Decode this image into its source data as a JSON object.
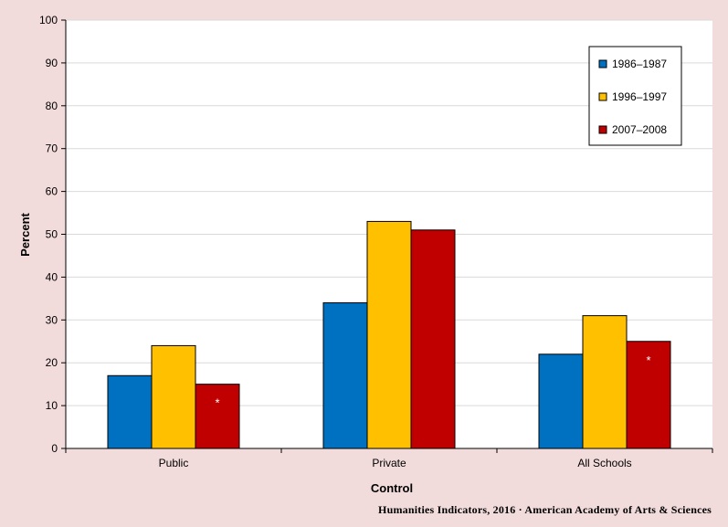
{
  "chart_data": {
    "type": "bar",
    "categories": [
      "Public",
      "Private",
      "All Schools"
    ],
    "series": [
      {
        "name": "1986–1987",
        "values": [
          17,
          34,
          22
        ],
        "color": "#0070c0"
      },
      {
        "name": "1996–1997",
        "values": [
          24,
          53,
          31
        ],
        "color": "#ffc000"
      },
      {
        "name": "2007–2008",
        "values": [
          15,
          51,
          25
        ],
        "color": "#c00000"
      }
    ],
    "annotations": [
      {
        "category": "Public",
        "series": "2007–2008",
        "text": "*"
      },
      {
        "category": "All Schools",
        "series": "2007–2008",
        "text": "*"
      }
    ],
    "xlabel": "Control",
    "ylabel": "Percent",
    "ylim": [
      0,
      100
    ],
    "yticks": [
      0,
      10,
      20,
      30,
      40,
      50,
      60,
      70,
      80,
      90,
      100
    ],
    "grid": true,
    "legend_position": "top-right",
    "plot_background": "#ffffff",
    "page_background": "#f2dcdb"
  },
  "credit": "Humanities  Indicators, 2016  · American Academy of Arts & Sciences"
}
